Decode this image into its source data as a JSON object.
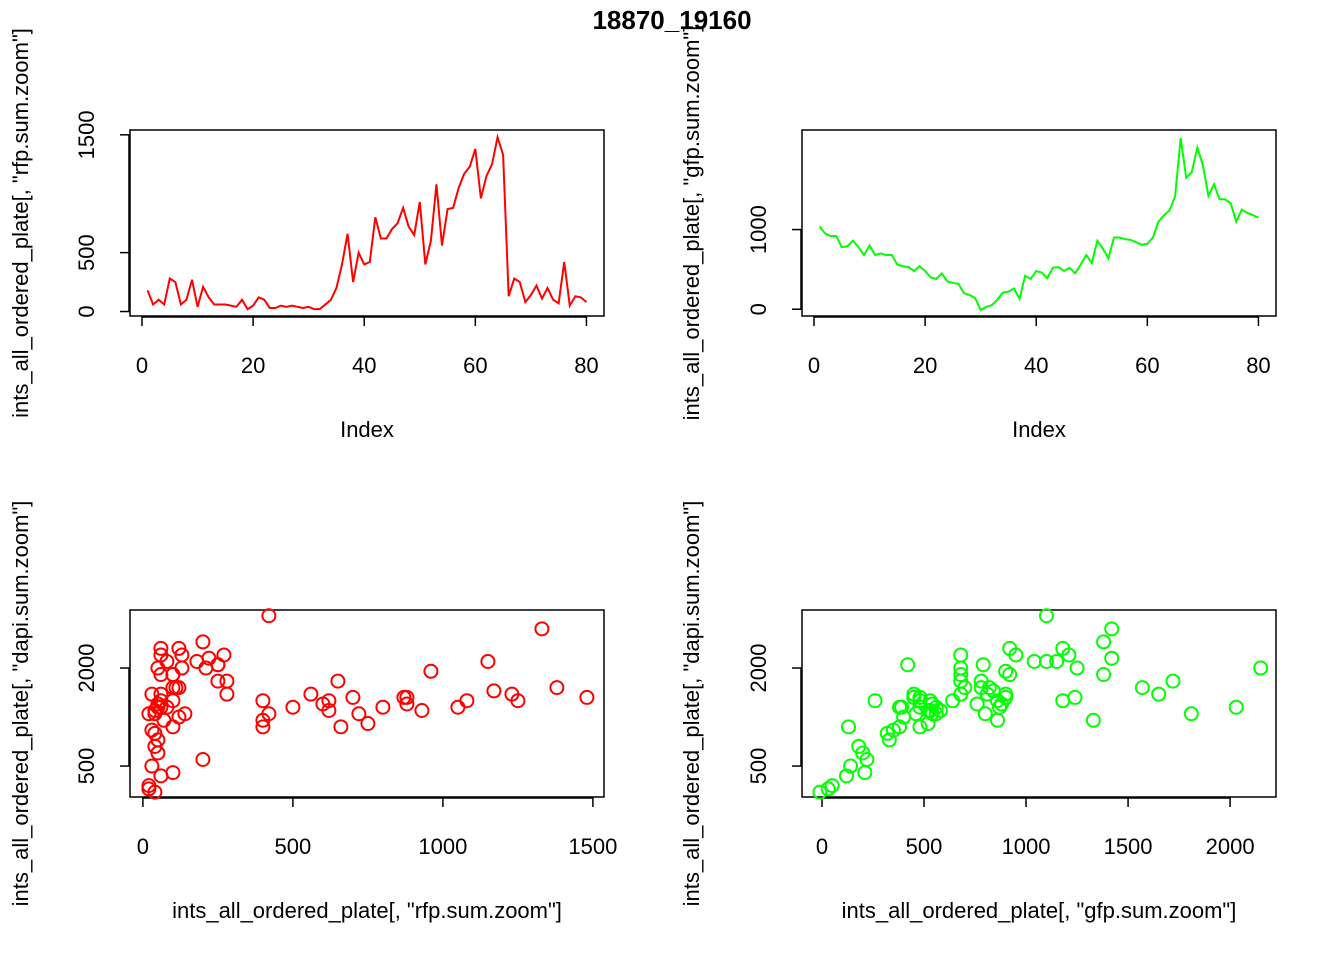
{
  "title": "18870_19160",
  "chart_data": [
    {
      "type": "line",
      "xlabel": "Index",
      "ylabel": "ints_all_ordered_plate[, \"rfp.sum.zoom\"]",
      "color": "#ff0000",
      "x": [
        1,
        2,
        3,
        4,
        5,
        6,
        7,
        8,
        9,
        10,
        11,
        12,
        13,
        14,
        15,
        16,
        17,
        18,
        19,
        20,
        21,
        22,
        23,
        24,
        25,
        26,
        27,
        28,
        29,
        30,
        31,
        32,
        33,
        34,
        35,
        36,
        37,
        38,
        39,
        40,
        41,
        42,
        43,
        44,
        45,
        46,
        47,
        48,
        49,
        50,
        51,
        52,
        53,
        54,
        55,
        56,
        57,
        58,
        59,
        60,
        61,
        62,
        63,
        64,
        65,
        66,
        67,
        68,
        69,
        70,
        71,
        72,
        73,
        74,
        75,
        76,
        77,
        78,
        79,
        80
      ],
      "values": [
        180,
        60,
        100,
        60,
        280,
        250,
        60,
        100,
        270,
        40,
        210,
        120,
        60,
        60,
        60,
        50,
        40,
        100,
        20,
        50,
        120,
        100,
        30,
        30,
        50,
        40,
        50,
        40,
        30,
        40,
        20,
        20,
        60,
        100,
        200,
        400,
        660,
        250,
        500,
        400,
        420,
        800,
        620,
        620,
        700,
        750,
        880,
        720,
        650,
        930,
        400,
        600,
        1080,
        560,
        870,
        880,
        1050,
        1170,
        1230,
        1380,
        960,
        1150,
        1250,
        1480,
        1330,
        130,
        280,
        250,
        80,
        140,
        220,
        110,
        200,
        100,
        70,
        420,
        50,
        130,
        120,
        80
      ],
      "xlim": [
        -2.16,
        83.16
      ],
      "ylim": [
        -38,
        1541
      ],
      "xticks": [
        0,
        20,
        40,
        60,
        80
      ],
      "yticks": [
        0,
        500,
        1500
      ]
    },
    {
      "type": "line",
      "xlabel": "Index",
      "ylabel": "ints_all_ordered_plate[, \"gfp.sum.zoom\"]",
      "color": "#00ff00",
      "x": [
        1,
        2,
        3,
        4,
        5,
        6,
        7,
        8,
        9,
        10,
        11,
        12,
        13,
        14,
        15,
        16,
        17,
        18,
        19,
        20,
        21,
        22,
        23,
        24,
        25,
        26,
        27,
        28,
        29,
        30,
        31,
        32,
        33,
        34,
        35,
        36,
        37,
        38,
        39,
        40,
        41,
        42,
        43,
        44,
        45,
        46,
        47,
        48,
        49,
        50,
        51,
        52,
        53,
        54,
        55,
        56,
        57,
        58,
        59,
        60,
        61,
        62,
        63,
        64,
        65,
        66,
        67,
        68,
        69,
        70,
        71,
        72,
        73,
        74,
        75,
        76,
        77,
        78,
        79,
        80
      ],
      "values": [
        1040,
        950,
        920,
        920,
        780,
        790,
        860,
        780,
        680,
        800,
        680,
        700,
        680,
        680,
        560,
        540,
        530,
        480,
        540,
        480,
        400,
        380,
        450,
        350,
        330,
        320,
        200,
        180,
        140,
        -10,
        30,
        50,
        120,
        210,
        220,
        260,
        130,
        420,
        380,
        480,
        460,
        390,
        520,
        530,
        480,
        520,
        450,
        560,
        680,
        580,
        860,
        760,
        640,
        900,
        900,
        880,
        870,
        840,
        810,
        820,
        900,
        1100,
        1180,
        1240,
        1420,
        2150,
        1650,
        1720,
        2030,
        1810,
        1420,
        1570,
        1380,
        1380,
        1330,
        1100,
        1250,
        1210,
        1180,
        1150
      ],
      "xlim": [
        -2.16,
        83.16
      ],
      "ylim": [
        -85,
        2250
      ],
      "xticks": [
        0,
        20,
        40,
        60,
        80
      ],
      "yticks": [
        0,
        1000
      ]
    },
    {
      "type": "scatter",
      "xlabel": "ints_all_ordered_plate[, \"rfp.sum.zoom\"]",
      "ylabel": "ints_all_ordered_plate[, \"dapi.sum.zoom\"]",
      "color": "#ff0000",
      "x": [
        180,
        60,
        100,
        60,
        280,
        250,
        60,
        100,
        270,
        40,
        210,
        120,
        60,
        60,
        60,
        50,
        40,
        100,
        20,
        50,
        120,
        100,
        30,
        30,
        50,
        40,
        50,
        40,
        30,
        40,
        20,
        20,
        60,
        100,
        200,
        400,
        660,
        250,
        500,
        400,
        420,
        800,
        620,
        620,
        700,
        750,
        880,
        720,
        650,
        930,
        400,
        600,
        1080,
        560,
        870,
        880,
        1050,
        1170,
        1230,
        1380,
        960,
        1150,
        1250,
        1480,
        1330,
        130,
        280,
        250,
        80,
        140,
        220,
        110,
        200,
        100,
        70,
        420,
        50,
        130,
        120,
        80
      ],
      "values": [
        2100,
        2200,
        1900,
        2300,
        1800,
        2050,
        1500,
        1700,
        2200,
        1300,
        2000,
        1700,
        1900,
        1600,
        1400,
        1450,
        1350,
        1500,
        1300,
        1400,
        1250,
        1100,
        1600,
        1050,
        900,
        1000,
        700,
        800,
        500,
        100,
        150,
        200,
        350,
        400,
        600,
        1500,
        1100,
        2050,
        1400,
        1100,
        1300,
        1400,
        1350,
        1500,
        1550,
        1150,
        1550,
        1300,
        1800,
        1350,
        1200,
        1450,
        1500,
        1600,
        1550,
        1450,
        1400,
        1650,
        1600,
        1700,
        1950,
        2100,
        1500,
        1550,
        2600,
        2000,
        1600,
        1800,
        1400,
        1300,
        2150,
        1700,
        2400,
        1900,
        1200,
        2800,
        2000,
        2200,
        2300,
        2100
      ],
      "xlim": [
        -43,
        1537
      ],
      "ylim": [
        26,
        2888
      ],
      "xticks": [
        0,
        500,
        1000,
        1500
      ],
      "yticks": [
        500,
        2000
      ]
    },
    {
      "type": "scatter",
      "xlabel": "ints_all_ordered_plate[, \"gfp.sum.zoom\"]",
      "ylabel": "ints_all_ordered_plate[, \"dapi.sum.zoom\"]",
      "color": "#00ff00",
      "x": [
        1040,
        950,
        920,
        920,
        780,
        790,
        860,
        780,
        680,
        800,
        680,
        700,
        680,
        680,
        560,
        540,
        530,
        480,
        540,
        480,
        400,
        380,
        450,
        350,
        330,
        320,
        200,
        180,
        140,
        -10,
        30,
        50,
        120,
        210,
        220,
        260,
        130,
        420,
        380,
        480,
        460,
        390,
        520,
        530,
        480,
        520,
        450,
        560,
        680,
        580,
        860,
        760,
        640,
        900,
        900,
        880,
        870,
        840,
        810,
        820,
        900,
        1100,
        1180,
        1240,
        1420,
        2150,
        1650,
        1720,
        2030,
        1810,
        1420,
        1570,
        1380,
        1380,
        1330,
        1100,
        1250,
        1210,
        1180,
        1150
      ],
      "values": [
        2100,
        2200,
        1900,
        2300,
        1800,
        2050,
        1500,
        1700,
        2200,
        1300,
        2000,
        1700,
        1900,
        1600,
        1400,
        1450,
        1350,
        1500,
        1300,
        1400,
        1250,
        1100,
        1600,
        1050,
        900,
        1000,
        700,
        800,
        500,
        100,
        150,
        200,
        350,
        400,
        600,
        1500,
        1100,
        2050,
        1400,
        1100,
        1300,
        1400,
        1350,
        1500,
        1550,
        1150,
        1550,
        1300,
        1800,
        1350,
        1200,
        1450,
        1500,
        1600,
        1550,
        1450,
        1400,
        1650,
        1600,
        1700,
        1950,
        2100,
        1500,
        1550,
        2600,
        2000,
        1600,
        1800,
        1400,
        1300,
        2150,
        1700,
        2400,
        1900,
        1200,
        2800,
        2000,
        2200,
        2300,
        2100
      ],
      "xlim": [
        -98,
        2225
      ],
      "ylim": [
        26,
        2888
      ],
      "xticks": [
        0,
        500,
        1000,
        1500,
        2000
      ],
      "yticks": [
        500,
        2000
      ]
    }
  ]
}
